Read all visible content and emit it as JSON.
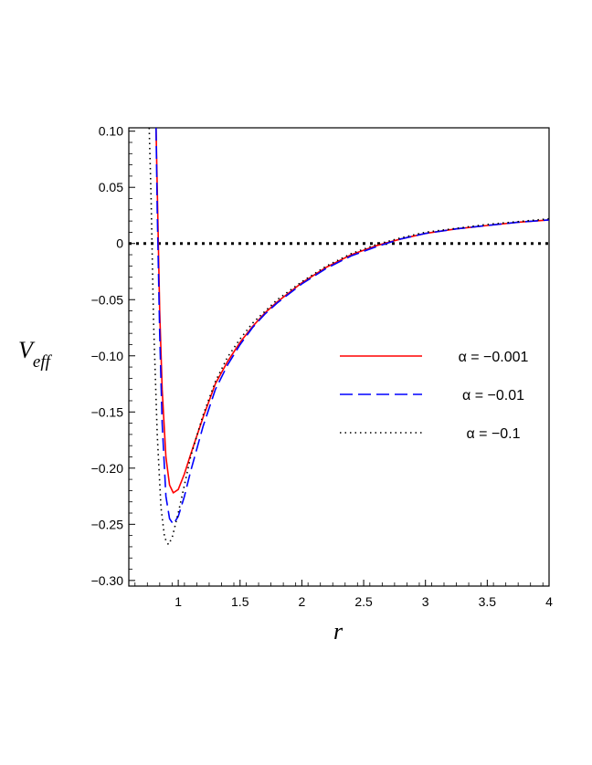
{
  "chart_data": {
    "type": "line",
    "title": "",
    "xlabel": "r",
    "ylabel_main": "V",
    "ylabel_sub": "eff",
    "xlim": [
      0.6,
      4.0
    ],
    "ylim": [
      -0.305,
      0.103
    ],
    "x_ticks": [
      1,
      1.5,
      2,
      2.5,
      3,
      3.5,
      4
    ],
    "x_tick_labels": [
      "1",
      "1.5",
      "2",
      "2.5",
      "3",
      "3.5",
      "4"
    ],
    "y_ticks": [
      0.1,
      0.05,
      0,
      -0.05,
      -0.1,
      -0.15,
      -0.2,
      -0.25,
      -0.3
    ],
    "y_tick_labels": [
      "0.10",
      "0.05",
      "0",
      "−0.05",
      "−0.10",
      "−0.15",
      "−0.20",
      "−0.25",
      "−0.30"
    ],
    "grid": false,
    "legend_position": "right",
    "reference_line": {
      "y": 0,
      "style": "dotted",
      "color": "#000000"
    },
    "series": [
      {
        "name": "α = −0.001",
        "color": "#ff0000",
        "style": "solid",
        "x": [
          0.82,
          0.83,
          0.85,
          0.87,
          0.9,
          0.93,
          0.96,
          1.0,
          1.05,
          1.1,
          1.2,
          1.3,
          1.4,
          1.5,
          1.6,
          1.7,
          1.8,
          2.0,
          2.2,
          2.4,
          2.6,
          2.8,
          3.0,
          3.25,
          3.5,
          3.75,
          4.0
        ],
        "y": [
          0.103,
          0.05,
          -0.06,
          -0.13,
          -0.19,
          -0.215,
          -0.222,
          -0.219,
          -0.205,
          -0.188,
          -0.155,
          -0.125,
          -0.105,
          -0.088,
          -0.074,
          -0.062,
          -0.052,
          -0.035,
          -0.021,
          -0.01,
          -0.002,
          0.004,
          0.009,
          0.013,
          0.016,
          0.019,
          0.021
        ]
      },
      {
        "name": "α = −0.01",
        "color": "#0000ff",
        "style": "dashed",
        "x": [
          0.82,
          0.83,
          0.85,
          0.87,
          0.9,
          0.93,
          0.96,
          1.0,
          1.05,
          1.1,
          1.2,
          1.3,
          1.4,
          1.5,
          1.6,
          1.7,
          1.8,
          2.0,
          2.2,
          2.4,
          2.6,
          2.8,
          3.0,
          3.25,
          3.5,
          3.75,
          4.0
        ],
        "y": [
          0.103,
          0.03,
          -0.08,
          -0.16,
          -0.225,
          -0.245,
          -0.25,
          -0.243,
          -0.225,
          -0.203,
          -0.163,
          -0.13,
          -0.108,
          -0.09,
          -0.075,
          -0.063,
          -0.053,
          -0.036,
          -0.022,
          -0.011,
          -0.003,
          0.004,
          0.009,
          0.013,
          0.016,
          0.019,
          0.021
        ]
      },
      {
        "name": "α = −0.1",
        "color": "#000000",
        "style": "dotted",
        "x": [
          0.765,
          0.78,
          0.8,
          0.83,
          0.86,
          0.89,
          0.92,
          0.95,
          1.0,
          1.05,
          1.1,
          1.2,
          1.3,
          1.4,
          1.5,
          1.6,
          1.8,
          2.0,
          2.2,
          2.4,
          2.6,
          2.8,
          3.0,
          3.5,
          4.0
        ],
        "y": [
          0.103,
          0.04,
          -0.07,
          -0.17,
          -0.235,
          -0.262,
          -0.268,
          -0.262,
          -0.24,
          -0.215,
          -0.19,
          -0.153,
          -0.123,
          -0.101,
          -0.085,
          -0.071,
          -0.05,
          -0.034,
          -0.02,
          -0.009,
          -0.001,
          0.005,
          0.01,
          0.017,
          0.022
        ]
      }
    ]
  }
}
